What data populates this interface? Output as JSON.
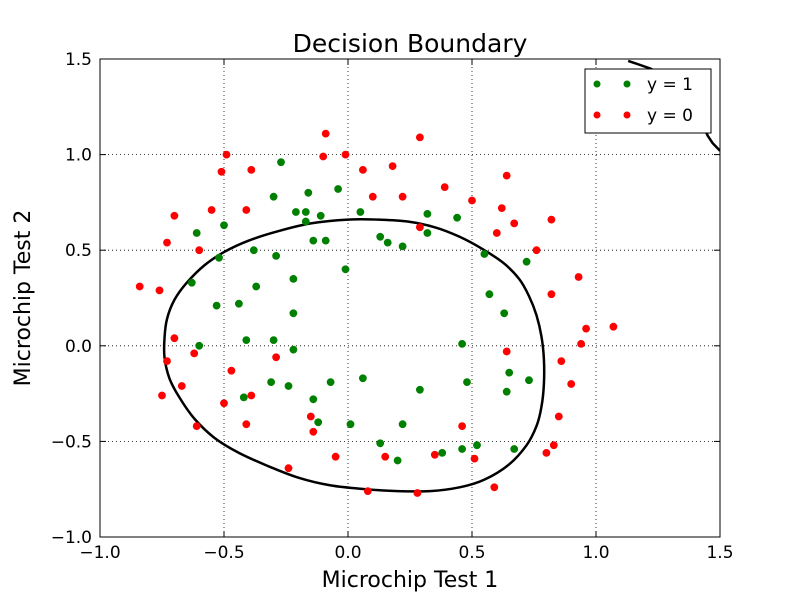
{
  "chart_data": {
    "type": "scatter",
    "title": "Decision Boundary",
    "xlabel": "Microchip Test 1",
    "ylabel": "Microchip Test 2",
    "xlim": [
      -1.0,
      1.5
    ],
    "ylim": [
      -1.0,
      1.5
    ],
    "xticks": [
      -1.0,
      -0.5,
      0.0,
      0.5,
      1.0,
      1.5
    ],
    "yticks": [
      -1.0,
      -0.5,
      0.0,
      0.5,
      1.0,
      1.5
    ],
    "xtick_labels": [
      "−1.0",
      "−0.5",
      "0.0",
      "0.5",
      "1.0",
      "1.5"
    ],
    "ytick_labels": [
      "−1.0",
      "−0.5",
      "0.0",
      "0.5",
      "1.0",
      "1.5"
    ],
    "grid": true,
    "legend_position": "top-right",
    "series": [
      {
        "name": "y = 1",
        "color": "#008000",
        "points": [
          [
            -0.27,
            0.96
          ],
          [
            -0.16,
            0.8
          ],
          [
            -0.04,
            0.82
          ],
          [
            -0.3,
            0.78
          ],
          [
            -0.21,
            0.7
          ],
          [
            -0.17,
            0.7
          ],
          [
            -0.11,
            0.68
          ],
          [
            0.05,
            0.7
          ],
          [
            0.32,
            0.69
          ],
          [
            0.44,
            0.67
          ],
          [
            -0.17,
            0.65
          ],
          [
            -0.5,
            0.63
          ],
          [
            -0.61,
            0.59
          ],
          [
            -0.14,
            0.55
          ],
          [
            -0.09,
            0.55
          ],
          [
            0.13,
            0.57
          ],
          [
            0.16,
            0.54
          ],
          [
            0.22,
            0.52
          ],
          [
            0.32,
            0.59
          ],
          [
            -0.38,
            0.5
          ],
          [
            -0.52,
            0.46
          ],
          [
            -0.29,
            0.47
          ],
          [
            0.55,
            0.48
          ],
          [
            0.72,
            0.44
          ],
          [
            -0.01,
            0.4
          ],
          [
            -0.22,
            0.35
          ],
          [
            -0.63,
            0.33
          ],
          [
            -0.37,
            0.31
          ],
          [
            0.57,
            0.27
          ],
          [
            -0.53,
            0.21
          ],
          [
            -0.44,
            0.22
          ],
          [
            -0.22,
            0.17
          ],
          [
            0.63,
            0.17
          ],
          [
            -0.41,
            0.03
          ],
          [
            -0.3,
            0.03
          ],
          [
            -0.6,
            0.0
          ],
          [
            -0.22,
            -0.02
          ],
          [
            0.46,
            0.01
          ],
          [
            0.65,
            -0.14
          ],
          [
            0.73,
            -0.18
          ],
          [
            0.06,
            -0.17
          ],
          [
            -0.31,
            -0.19
          ],
          [
            -0.24,
            -0.21
          ],
          [
            -0.07,
            -0.19
          ],
          [
            0.48,
            -0.19
          ],
          [
            0.29,
            -0.23
          ],
          [
            -0.42,
            -0.27
          ],
          [
            -0.14,
            -0.28
          ],
          [
            0.64,
            -0.24
          ],
          [
            -0.12,
            -0.4
          ],
          [
            0.01,
            -0.41
          ],
          [
            0.22,
            -0.41
          ],
          [
            0.13,
            -0.51
          ],
          [
            0.46,
            -0.54
          ],
          [
            0.52,
            -0.52
          ],
          [
            0.67,
            -0.54
          ],
          [
            0.38,
            -0.56
          ],
          [
            0.2,
            -0.6
          ]
        ]
      },
      {
        "name": "y = 0",
        "color": "#ff0000",
        "points": [
          [
            -0.09,
            1.11
          ],
          [
            0.29,
            1.09
          ],
          [
            -0.49,
            1.0
          ],
          [
            -0.1,
            0.99
          ],
          [
            -0.01,
            1.0
          ],
          [
            -0.51,
            0.91
          ],
          [
            -0.39,
            0.92
          ],
          [
            0.06,
            0.92
          ],
          [
            0.18,
            0.94
          ],
          [
            0.64,
            0.89
          ],
          [
            0.39,
            0.83
          ],
          [
            0.5,
            0.76
          ],
          [
            0.1,
            0.78
          ],
          [
            0.22,
            0.78
          ],
          [
            -0.55,
            0.71
          ],
          [
            -0.41,
            0.71
          ],
          [
            -0.7,
            0.68
          ],
          [
            0.62,
            0.72
          ],
          [
            0.67,
            0.64
          ],
          [
            0.82,
            0.66
          ],
          [
            -0.73,
            0.54
          ],
          [
            -0.6,
            0.5
          ],
          [
            0.29,
            0.62
          ],
          [
            0.6,
            0.59
          ],
          [
            0.76,
            0.5
          ],
          [
            -0.84,
            0.31
          ],
          [
            -0.76,
            0.29
          ],
          [
            0.93,
            0.36
          ],
          [
            0.82,
            0.27
          ],
          [
            -0.7,
            0.04
          ],
          [
            0.96,
            0.09
          ],
          [
            1.07,
            0.1
          ],
          [
            0.94,
            0.01
          ],
          [
            -0.62,
            -0.04
          ],
          [
            -0.29,
            -0.06
          ],
          [
            0.64,
            -0.03
          ],
          [
            -0.67,
            -0.21
          ],
          [
            -0.73,
            -0.08
          ],
          [
            0.86,
            -0.08
          ],
          [
            0.9,
            -0.2
          ],
          [
            -0.47,
            -0.13
          ],
          [
            -0.75,
            -0.26
          ],
          [
            -0.39,
            -0.26
          ],
          [
            -0.5,
            -0.3
          ],
          [
            -0.15,
            -0.37
          ],
          [
            0.85,
            -0.37
          ],
          [
            -0.61,
            -0.42
          ],
          [
            -0.41,
            -0.41
          ],
          [
            -0.14,
            -0.45
          ],
          [
            0.46,
            -0.42
          ],
          [
            0.83,
            -0.52
          ],
          [
            0.8,
            -0.56
          ],
          [
            -0.05,
            -0.58
          ],
          [
            0.15,
            -0.58
          ],
          [
            0.35,
            -0.57
          ],
          [
            0.51,
            -0.59
          ],
          [
            -0.24,
            -0.64
          ],
          [
            0.59,
            -0.74
          ],
          [
            0.08,
            -0.76
          ],
          [
            0.28,
            -0.77
          ]
        ]
      }
    ],
    "boundary": {
      "color": "#000000",
      "closed_curve": [
        [
          0.0,
          0.66
        ],
        [
          0.12,
          0.66
        ],
        [
          0.24,
          0.65
        ],
        [
          0.35,
          0.62
        ],
        [
          0.45,
          0.57
        ],
        [
          0.55,
          0.5
        ],
        [
          0.63,
          0.43
        ],
        [
          0.69,
          0.35
        ],
        [
          0.73,
          0.26
        ],
        [
          0.76,
          0.16
        ],
        [
          0.78,
          0.05
        ],
        [
          0.79,
          -0.07
        ],
        [
          0.79,
          -0.2
        ],
        [
          0.78,
          -0.32
        ],
        [
          0.76,
          -0.42
        ],
        [
          0.72,
          -0.52
        ],
        [
          0.65,
          -0.62
        ],
        [
          0.55,
          -0.7
        ],
        [
          0.45,
          -0.74
        ],
        [
          0.33,
          -0.76
        ],
        [
          0.2,
          -0.76
        ],
        [
          0.07,
          -0.75
        ],
        [
          -0.07,
          -0.73
        ],
        [
          -0.2,
          -0.69
        ],
        [
          -0.32,
          -0.63
        ],
        [
          -0.44,
          -0.56
        ],
        [
          -0.54,
          -0.48
        ],
        [
          -0.62,
          -0.38
        ],
        [
          -0.68,
          -0.27
        ],
        [
          -0.72,
          -0.17
        ],
        [
          -0.74,
          -0.06
        ],
        [
          -0.74,
          0.04
        ],
        [
          -0.73,
          0.14
        ],
        [
          -0.7,
          0.24
        ],
        [
          -0.65,
          0.33
        ],
        [
          -0.58,
          0.42
        ],
        [
          -0.5,
          0.49
        ],
        [
          -0.4,
          0.55
        ],
        [
          -0.28,
          0.6
        ],
        [
          -0.15,
          0.64
        ]
      ],
      "corner_arc": [
        [
          1.13,
          1.49
        ],
        [
          1.22,
          1.45
        ],
        [
          1.29,
          1.4
        ],
        [
          1.34,
          1.34
        ],
        [
          1.38,
          1.28
        ],
        [
          1.41,
          1.22
        ],
        [
          1.43,
          1.16
        ],
        [
          1.45,
          1.1
        ],
        [
          1.47,
          1.06
        ],
        [
          1.5,
          1.02
        ]
      ]
    }
  }
}
